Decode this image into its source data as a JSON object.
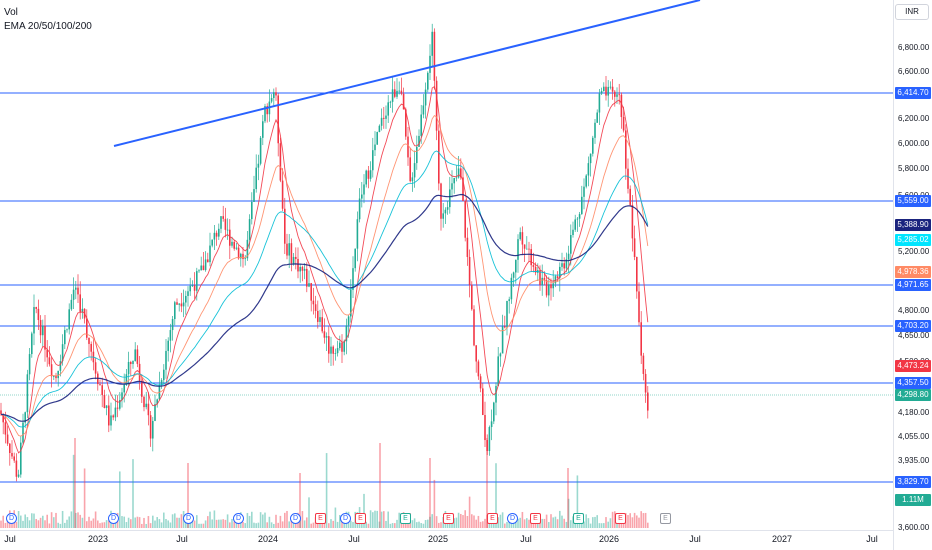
{
  "legend": {
    "line1": "Vol",
    "line2": "EMA 20/50/100/200"
  },
  "currency": "INR",
  "price_axis": {
    "ticks": [
      "6,800.00",
      "6,600.00",
      "6,200.00",
      "6,000.00",
      "5,800.00",
      "5,600.00",
      "5,200.00",
      "4,800.00",
      "4,650.00",
      "4,500.00",
      "4,180.00",
      "4,055.00",
      "3,935.00",
      "3,600.00"
    ],
    "badges": [
      {
        "text": "6,414.70",
        "color": "#2962ff",
        "price": 6414.7
      },
      {
        "text": "5,559.00",
        "color": "#2962ff",
        "price": 5559
      },
      {
        "text": "5,388.90",
        "color": "#1a237e",
        "price": 5388.9
      },
      {
        "text": "5,285.02",
        "color": "#00e5ff",
        "price": 5285.02
      },
      {
        "text": "4,978.36",
        "color": "#ff8a65",
        "price": 4978.36
      },
      {
        "text": "4,971.65",
        "color": "#2962ff",
        "price": 4971.65
      },
      {
        "text": "4,703.20",
        "color": "#2962ff",
        "price": 4703.2
      },
      {
        "text": "4,473.24",
        "color": "#f23645",
        "price": 4473.24
      },
      {
        "text": "4,357.50",
        "color": "#2962ff",
        "price": 4357.5
      },
      {
        "text": "4,298.80",
        "color": "#22ab94",
        "price": 4298.8
      },
      {
        "text": "3,829.70",
        "color": "#2962ff",
        "price": 3829.7
      },
      {
        "text": "1.11M",
        "color": "#22ab94",
        "price": 3700
      }
    ]
  },
  "time_axis": [
    "Jul",
    "2023",
    "Jul",
    "2024",
    "Jul",
    "2025",
    "Jul",
    "2026",
    "Jul",
    "2027",
    "Jul"
  ],
  "events": [
    "D",
    "D",
    "D",
    "D",
    "D",
    "E",
    "D",
    "E",
    "E",
    "E",
    "E",
    "D",
    "E",
    "E",
    "E",
    "E"
  ],
  "colors": {
    "up": "#22ab94",
    "down": "#f23645",
    "hline": "#2962ff"
  }
}
